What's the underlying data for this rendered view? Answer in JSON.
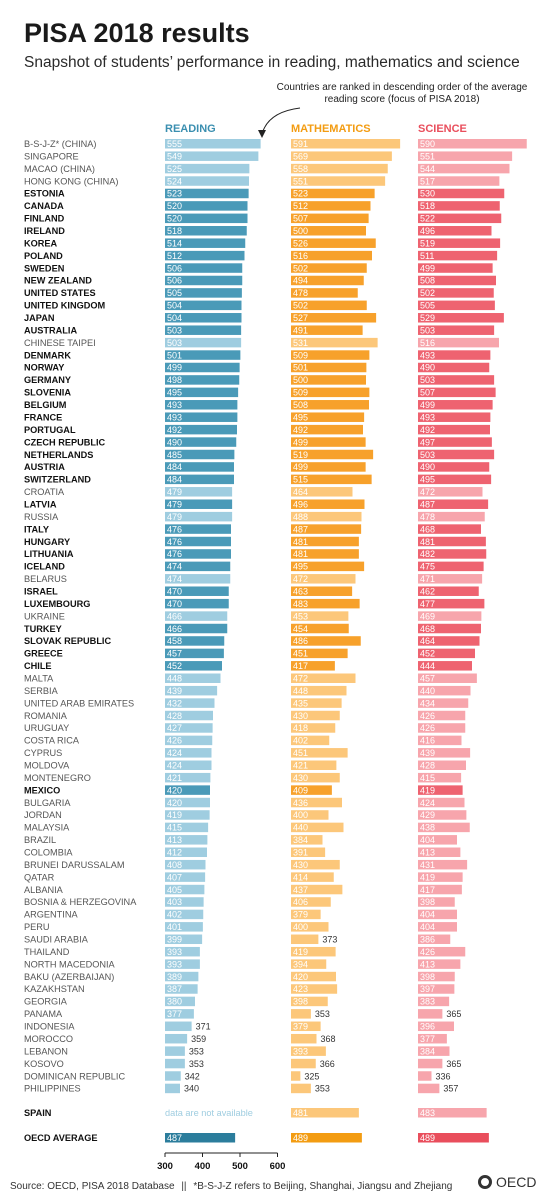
{
  "title": "PISA 2018 results",
  "subtitle": "Snapshot of students’ performance in reading, mathematics and science",
  "note": "Countries are ranked in descending order of the average reading score (focus of PISA 2018)",
  "footer": {
    "source": "Source: OECD, PISA 2018 Database",
    "separator": "||",
    "footnote": "*B-S-J-Z refers to Beijing, Shanghai, Jiangsu and Zhejiang",
    "logo": "OECD"
  },
  "colors": {
    "reading_dark": "#4a9ab8",
    "reading_light": "#9fcde0",
    "math_dark": "#f7a12b",
    "math_light": "#fcc77a",
    "science_dark": "#ee6370",
    "science_light": "#f7a5ac",
    "avg_reading": "#2b7d9c",
    "avg_math": "#f39c12",
    "avg_science": "#e94e5c",
    "reading_header": "#3b8fb0",
    "math_header": "#f39c12",
    "science_header": "#e94e5c"
  },
  "chart_data": {
    "type": "bar",
    "column_headers": [
      "READING",
      "MATHEMATICS",
      "SCIENCE"
    ],
    "axis_ticks": [
      300,
      400,
      500,
      600
    ],
    "xlim": [
      300,
      600
    ],
    "rows": [
      {
        "name": "B-S-J-Z* (CHINA)",
        "oecd": false,
        "reading": 555,
        "math": 591,
        "science": 590
      },
      {
        "name": "SINGAPORE",
        "oecd": false,
        "reading": 549,
        "math": 569,
        "science": 551
      },
      {
        "name": "MACAO (CHINA)",
        "oecd": false,
        "reading": 525,
        "math": 558,
        "science": 544
      },
      {
        "name": "HONG KONG (CHINA)",
        "oecd": false,
        "reading": 524,
        "math": 551,
        "science": 517
      },
      {
        "name": "ESTONIA",
        "oecd": true,
        "reading": 523,
        "math": 523,
        "science": 530
      },
      {
        "name": "CANADA",
        "oecd": true,
        "reading": 520,
        "math": 512,
        "science": 518
      },
      {
        "name": "FINLAND",
        "oecd": true,
        "reading": 520,
        "math": 507,
        "science": 522
      },
      {
        "name": "IRELAND",
        "oecd": true,
        "reading": 518,
        "math": 500,
        "science": 496
      },
      {
        "name": "KOREA",
        "oecd": true,
        "reading": 514,
        "math": 526,
        "science": 519
      },
      {
        "name": "POLAND",
        "oecd": true,
        "reading": 512,
        "math": 516,
        "science": 511
      },
      {
        "name": "SWEDEN",
        "oecd": true,
        "reading": 506,
        "math": 502,
        "science": 499
      },
      {
        "name": "NEW ZEALAND",
        "oecd": true,
        "reading": 506,
        "math": 494,
        "science": 508
      },
      {
        "name": "UNITED STATES",
        "oecd": true,
        "reading": 505,
        "math": 478,
        "science": 502
      },
      {
        "name": "UNITED KINGDOM",
        "oecd": true,
        "reading": 504,
        "math": 502,
        "science": 505
      },
      {
        "name": "JAPAN",
        "oecd": true,
        "reading": 504,
        "math": 527,
        "science": 529
      },
      {
        "name": "AUSTRALIA",
        "oecd": true,
        "reading": 503,
        "math": 491,
        "science": 503
      },
      {
        "name": "CHINESE TAIPEI",
        "oecd": false,
        "reading": 503,
        "math": 531,
        "science": 516
      },
      {
        "name": "DENMARK",
        "oecd": true,
        "reading": 501,
        "math": 509,
        "science": 493
      },
      {
        "name": "NORWAY",
        "oecd": true,
        "reading": 499,
        "math": 501,
        "science": 490
      },
      {
        "name": "GERMANY",
        "oecd": true,
        "reading": 498,
        "math": 500,
        "science": 503
      },
      {
        "name": "SLOVENIA",
        "oecd": true,
        "reading": 495,
        "math": 509,
        "science": 507
      },
      {
        "name": "BELGIUM",
        "oecd": true,
        "reading": 493,
        "math": 508,
        "science": 499
      },
      {
        "name": "FRANCE",
        "oecd": true,
        "reading": 493,
        "math": 495,
        "science": 493
      },
      {
        "name": "PORTUGAL",
        "oecd": true,
        "reading": 492,
        "math": 492,
        "science": 492
      },
      {
        "name": "CZECH REPUBLIC",
        "oecd": true,
        "reading": 490,
        "math": 499,
        "science": 497
      },
      {
        "name": "NETHERLANDS",
        "oecd": true,
        "reading": 485,
        "math": 519,
        "science": 503
      },
      {
        "name": "AUSTRIA",
        "oecd": true,
        "reading": 484,
        "math": 499,
        "science": 490
      },
      {
        "name": "SWITZERLAND",
        "oecd": true,
        "reading": 484,
        "math": 515,
        "science": 495
      },
      {
        "name": "CROATIA",
        "oecd": false,
        "reading": 479,
        "math": 464,
        "science": 472
      },
      {
        "name": "LATVIA",
        "oecd": true,
        "reading": 479,
        "math": 496,
        "science": 487
      },
      {
        "name": "RUSSIA",
        "oecd": false,
        "reading": 479,
        "math": 488,
        "science": 478
      },
      {
        "name": "ITALY",
        "oecd": true,
        "reading": 476,
        "math": 487,
        "science": 468
      },
      {
        "name": "HUNGARY",
        "oecd": true,
        "reading": 476,
        "math": 481,
        "science": 481
      },
      {
        "name": "LITHUANIA",
        "oecd": true,
        "reading": 476,
        "math": 481,
        "science": 482
      },
      {
        "name": "ICELAND",
        "oecd": true,
        "reading": 474,
        "math": 495,
        "science": 475
      },
      {
        "name": "BELARUS",
        "oecd": false,
        "reading": 474,
        "math": 472,
        "science": 471
      },
      {
        "name": "ISRAEL",
        "oecd": true,
        "reading": 470,
        "math": 463,
        "science": 462
      },
      {
        "name": "LUXEMBOURG",
        "oecd": true,
        "reading": 470,
        "math": 483,
        "science": 477
      },
      {
        "name": "UKRAINE",
        "oecd": false,
        "reading": 466,
        "math": 453,
        "science": 469
      },
      {
        "name": "TURKEY",
        "oecd": true,
        "reading": 466,
        "math": 454,
        "science": 468
      },
      {
        "name": "SLOVAK REPUBLIC",
        "oecd": true,
        "reading": 458,
        "math": 486,
        "science": 464
      },
      {
        "name": "GREECE",
        "oecd": true,
        "reading": 457,
        "math": 451,
        "science": 452
      },
      {
        "name": "CHILE",
        "oecd": true,
        "reading": 452,
        "math": 417,
        "science": 444
      },
      {
        "name": "MALTA",
        "oecd": false,
        "reading": 448,
        "math": 472,
        "science": 457
      },
      {
        "name": "SERBIA",
        "oecd": false,
        "reading": 439,
        "math": 448,
        "science": 440
      },
      {
        "name": "UNITED ARAB EMIRATES",
        "oecd": false,
        "reading": 432,
        "math": 435,
        "science": 434
      },
      {
        "name": "ROMANIA",
        "oecd": false,
        "reading": 428,
        "math": 430,
        "science": 426
      },
      {
        "name": "URUGUAY",
        "oecd": false,
        "reading": 427,
        "math": 418,
        "science": 426
      },
      {
        "name": "COSTA RICA",
        "oecd": false,
        "reading": 426,
        "math": 402,
        "science": 416
      },
      {
        "name": "CYPRUS",
        "oecd": false,
        "reading": 424,
        "math": 451,
        "science": 439
      },
      {
        "name": "MOLDOVA",
        "oecd": false,
        "reading": 424,
        "math": 421,
        "science": 428
      },
      {
        "name": "MONTENEGRO",
        "oecd": false,
        "reading": 421,
        "math": 430,
        "science": 415
      },
      {
        "name": "MEXICO",
        "oecd": true,
        "reading": 420,
        "math": 409,
        "science": 419
      },
      {
        "name": "BULGARIA",
        "oecd": false,
        "reading": 420,
        "math": 436,
        "science": 424
      },
      {
        "name": "JORDAN",
        "oecd": false,
        "reading": 419,
        "math": 400,
        "science": 429
      },
      {
        "name": "MALAYSIA",
        "oecd": false,
        "reading": 415,
        "math": 440,
        "science": 438
      },
      {
        "name": "BRAZIL",
        "oecd": false,
        "reading": 413,
        "math": 384,
        "science": 404
      },
      {
        "name": "COLOMBIA",
        "oecd": false,
        "reading": 412,
        "math": 391,
        "science": 413
      },
      {
        "name": "BRUNEI DARUSSALAM",
        "oecd": false,
        "reading": 408,
        "math": 430,
        "science": 431
      },
      {
        "name": "QATAR",
        "oecd": false,
        "reading": 407,
        "math": 414,
        "science": 419
      },
      {
        "name": "ALBANIA",
        "oecd": false,
        "reading": 405,
        "math": 437,
        "science": 417
      },
      {
        "name": "BOSNIA & HERZEGOVINA",
        "oecd": false,
        "reading": 403,
        "math": 406,
        "science": 398
      },
      {
        "name": "ARGENTINA",
        "oecd": false,
        "reading": 402,
        "math": 379,
        "science": 404
      },
      {
        "name": "PERU",
        "oecd": false,
        "reading": 401,
        "math": 400,
        "science": 404
      },
      {
        "name": "SAUDI ARABIA",
        "oecd": false,
        "reading": 399,
        "math": 373,
        "science": 386
      },
      {
        "name": "THAILAND",
        "oecd": false,
        "reading": 393,
        "math": 419,
        "science": 426
      },
      {
        "name": "NORTH MACEDONIA",
        "oecd": false,
        "reading": 393,
        "math": 394,
        "science": 413
      },
      {
        "name": "BAKU (AZERBAIJAN)",
        "oecd": false,
        "reading": 389,
        "math": 420,
        "science": 398
      },
      {
        "name": "KAZAKHSTAN",
        "oecd": false,
        "reading": 387,
        "math": 423,
        "science": 397
      },
      {
        "name": "GEORGIA",
        "oecd": false,
        "reading": 380,
        "math": 398,
        "science": 383
      },
      {
        "name": "PANAMA",
        "oecd": false,
        "reading": 377,
        "math": 353,
        "science": 365
      },
      {
        "name": "INDONESIA",
        "oecd": false,
        "reading": 371,
        "math": 379,
        "science": 396
      },
      {
        "name": "MOROCCO",
        "oecd": false,
        "reading": 359,
        "math": 368,
        "science": 377
      },
      {
        "name": "LEBANON",
        "oecd": false,
        "reading": 353,
        "math": 393,
        "science": 384
      },
      {
        "name": "KOSOVO",
        "oecd": false,
        "reading": 353,
        "math": 366,
        "science": 365
      },
      {
        "name": "DOMINICAN REPUBLIC",
        "oecd": false,
        "reading": 342,
        "math": 325,
        "science": 336
      },
      {
        "name": "PHILIPPINES",
        "oecd": false,
        "reading": 340,
        "math": 353,
        "science": 357
      }
    ],
    "spain": {
      "name": "SPAIN",
      "oecd": true,
      "reading_text": "data are not available",
      "math": 481,
      "science": 483
    },
    "average": {
      "name": "OECD AVERAGE",
      "reading": 487,
      "math": 489,
      "science": 489
    }
  }
}
